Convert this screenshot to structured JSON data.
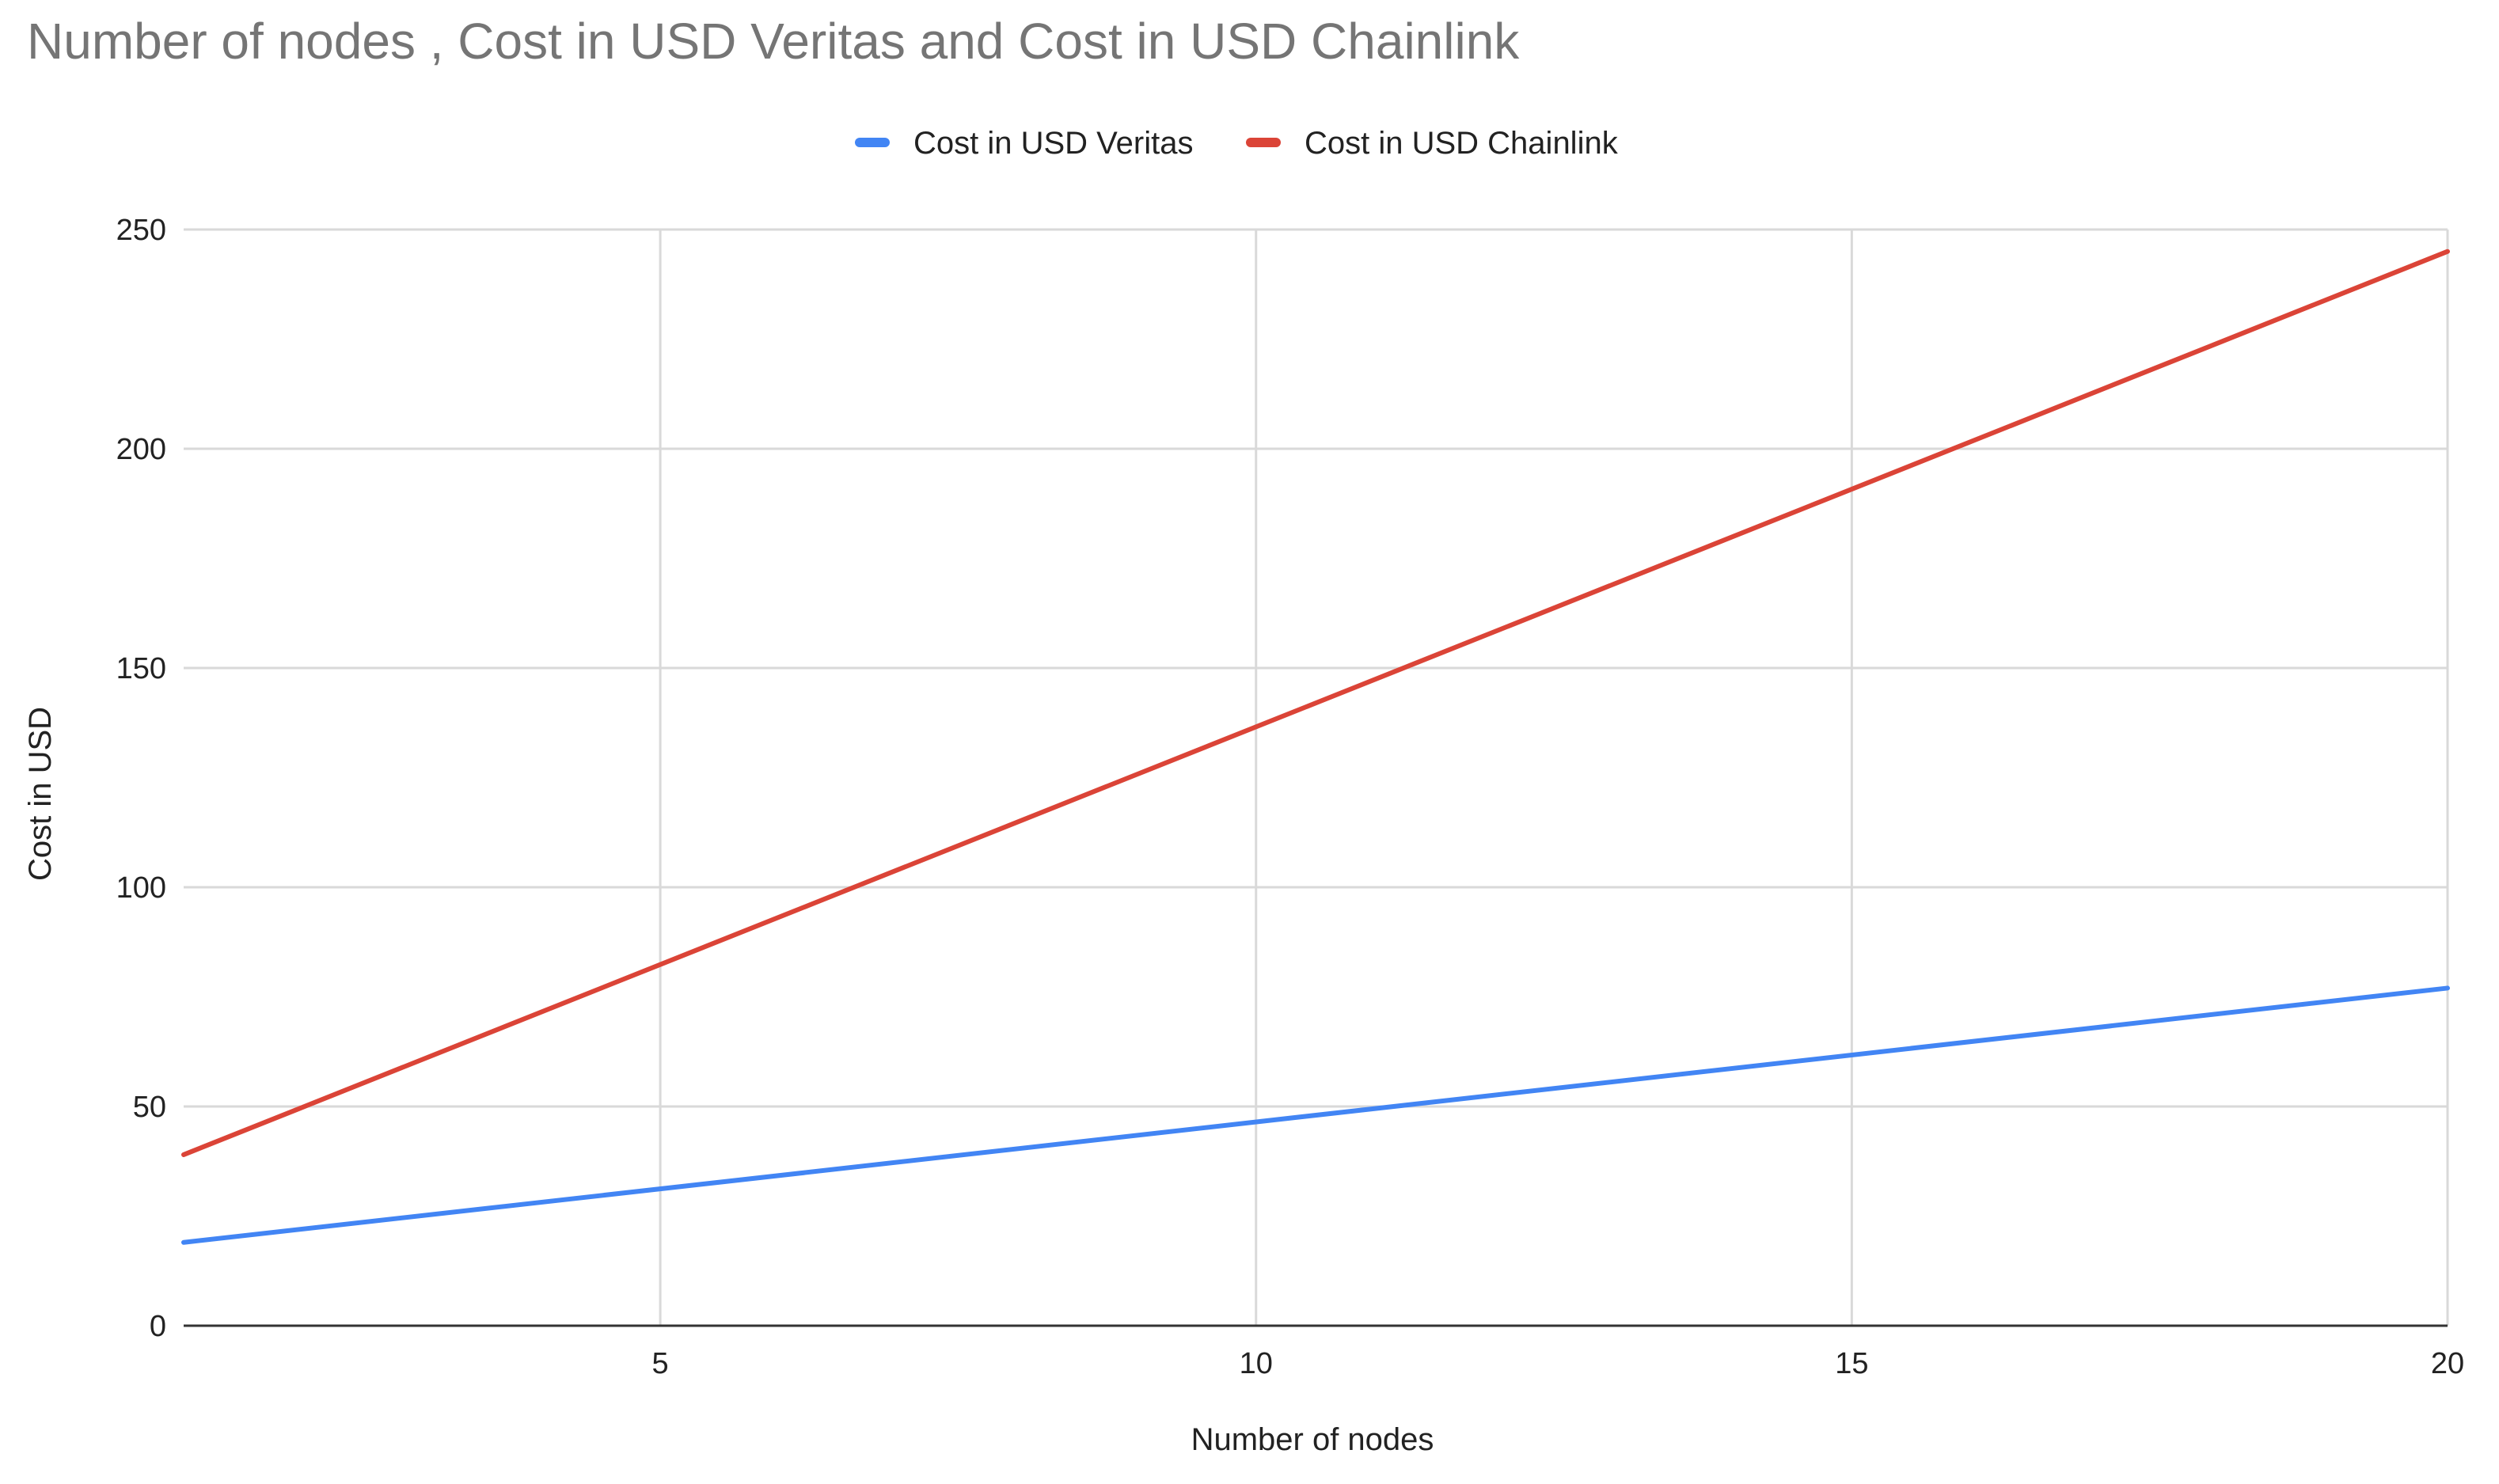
{
  "chart_data": {
    "type": "line",
    "title": "Number of nodes , Cost in USD Veritas and Cost in USD Chainlink",
    "xlabel": "Number of nodes",
    "ylabel": "Cost in USD",
    "xlim": [
      1,
      20
    ],
    "ylim": [
      0,
      250
    ],
    "xticks": [
      5,
      10,
      15,
      20
    ],
    "yticks": [
      0,
      50,
      100,
      150,
      200,
      250
    ],
    "x_tick_labels": [
      "5",
      "10",
      "15",
      "20"
    ],
    "y_tick_labels": [
      "0",
      "50",
      "100",
      "150",
      "200",
      "250"
    ],
    "grid": true,
    "legend_position": "top-center",
    "x": [
      1,
      20
    ],
    "series": [
      {
        "name": "Cost in USD Veritas",
        "color": "#4285f4",
        "values": [
          19,
          77
        ]
      },
      {
        "name": "Cost in USD Chainlink",
        "color": "#db4437",
        "values": [
          39,
          245
        ]
      }
    ]
  }
}
